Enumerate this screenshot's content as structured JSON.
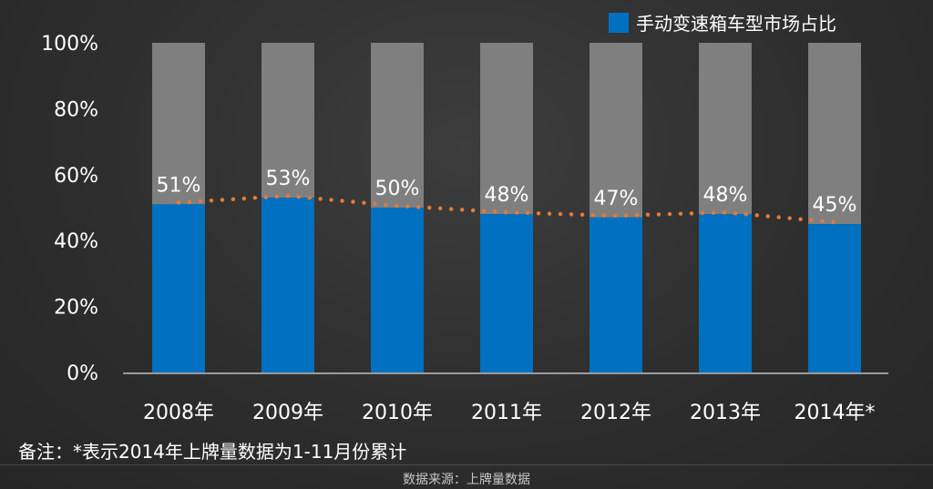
{
  "legend": {
    "label": "手动变速箱车型市场占比",
    "color": "#0070c0"
  },
  "note": "备注：*表示2014年上牌量数据为1-11月份累计",
  "source": "数据来源：上牌量数据",
  "chart_data": {
    "type": "bar",
    "categories": [
      "2008年",
      "2009年",
      "2010年",
      "2011年",
      "2012年",
      "2013年",
      "2014年*"
    ],
    "series": [
      {
        "name": "手动变速箱车型市场占比",
        "values": [
          51,
          53,
          50,
          48,
          47,
          48,
          45
        ]
      }
    ],
    "data_labels": [
      "51%",
      "53%",
      "50%",
      "48%",
      "47%",
      "48%",
      "45%"
    ],
    "ylim": [
      0,
      100
    ],
    "yticks": [
      0,
      20,
      40,
      60,
      80,
      100
    ],
    "ytick_labels": [
      "0%",
      "20%",
      "40%",
      "60%",
      "80%",
      "100%"
    ],
    "stacked_remainder_to": 100,
    "trendline": "dotted",
    "colors": {
      "bar": "#0070c0",
      "remainder": "#7f7f7f",
      "trend": "#e07b39",
      "axis": "#bfbfbf"
    },
    "legend_position": "top-right",
    "grid": false
  }
}
